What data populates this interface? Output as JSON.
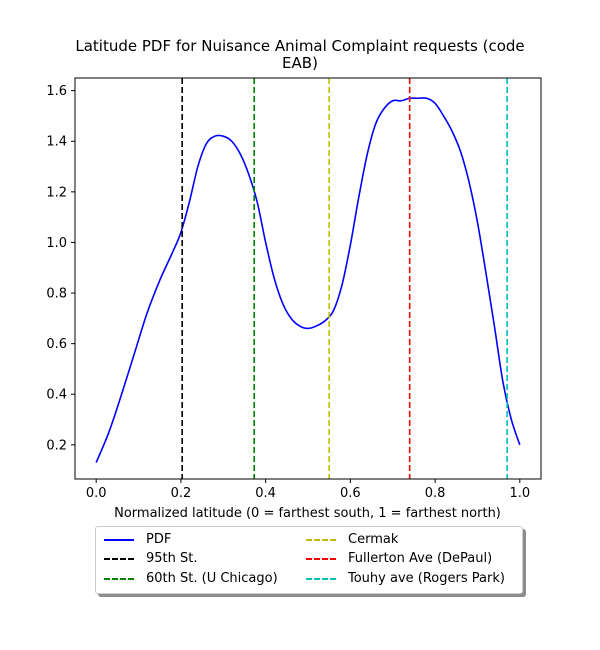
{
  "chart_data": {
    "type": "line",
    "title_lines": [
      "Latitude PDF for Nuisance Animal Complaint  requests (code",
      "EAB)"
    ],
    "xlabel": "Normalized latitude (0 = farthest south, 1 = farthest north)",
    "ylabel": "",
    "xlim": [
      -0.05,
      1.05
    ],
    "ylim": [
      0.065,
      1.65
    ],
    "xticks": [
      0.0,
      0.2,
      0.4,
      0.6,
      0.8,
      1.0
    ],
    "xtick_labels": [
      "0.0",
      "0.2",
      "0.4",
      "0.6",
      "0.8",
      "1.0"
    ],
    "yticks": [
      0.2,
      0.4,
      0.6,
      0.8,
      1.0,
      1.2,
      1.4,
      1.6
    ],
    "ytick_labels": [
      "0.2",
      "0.4",
      "0.6",
      "0.8",
      "1.0",
      "1.2",
      "1.4",
      "1.6"
    ],
    "grid": false,
    "legend_placement": "below plot, two columns",
    "series": [
      {
        "name": "PDF",
        "color": "#0000ff",
        "style": "solid",
        "x": [
          0.0,
          0.03,
          0.06,
          0.09,
          0.12,
          0.15,
          0.18,
          0.2,
          0.22,
          0.24,
          0.26,
          0.28,
          0.3,
          0.32,
          0.34,
          0.36,
          0.38,
          0.4,
          0.42,
          0.44,
          0.46,
          0.48,
          0.5,
          0.52,
          0.54,
          0.56,
          0.58,
          0.6,
          0.62,
          0.64,
          0.66,
          0.68,
          0.7,
          0.72,
          0.74,
          0.76,
          0.78,
          0.8,
          0.82,
          0.84,
          0.86,
          0.88,
          0.9,
          0.92,
          0.94,
          0.96,
          0.98,
          1.0
        ],
        "y": [
          0.13,
          0.25,
          0.4,
          0.56,
          0.72,
          0.85,
          0.96,
          1.04,
          1.16,
          1.3,
          1.39,
          1.42,
          1.42,
          1.4,
          1.35,
          1.27,
          1.16,
          1.0,
          0.86,
          0.76,
          0.7,
          0.67,
          0.66,
          0.67,
          0.69,
          0.73,
          0.83,
          0.99,
          1.18,
          1.35,
          1.47,
          1.53,
          1.56,
          1.56,
          1.57,
          1.57,
          1.57,
          1.55,
          1.5,
          1.44,
          1.36,
          1.24,
          1.08,
          0.88,
          0.67,
          0.45,
          0.3,
          0.2
        ]
      }
    ],
    "vlines": [
      {
        "name": "95th St.",
        "x": 0.203,
        "color": "#000000",
        "style": "dashed"
      },
      {
        "name": "60th St. (U Chicago)",
        "x": 0.373,
        "color": "#008000",
        "style": "dashed"
      },
      {
        "name": "Cermak",
        "x": 0.55,
        "color": "#bfbf00",
        "style": "dashed"
      },
      {
        "name": "Fullerton Ave (DePaul)",
        "x": 0.74,
        "color": "#ff0000",
        "style": "dashed"
      },
      {
        "name": "Touhy ave (Rogers Park)",
        "x": 0.97,
        "color": "#00bfbf",
        "style": "dashed"
      }
    ]
  }
}
